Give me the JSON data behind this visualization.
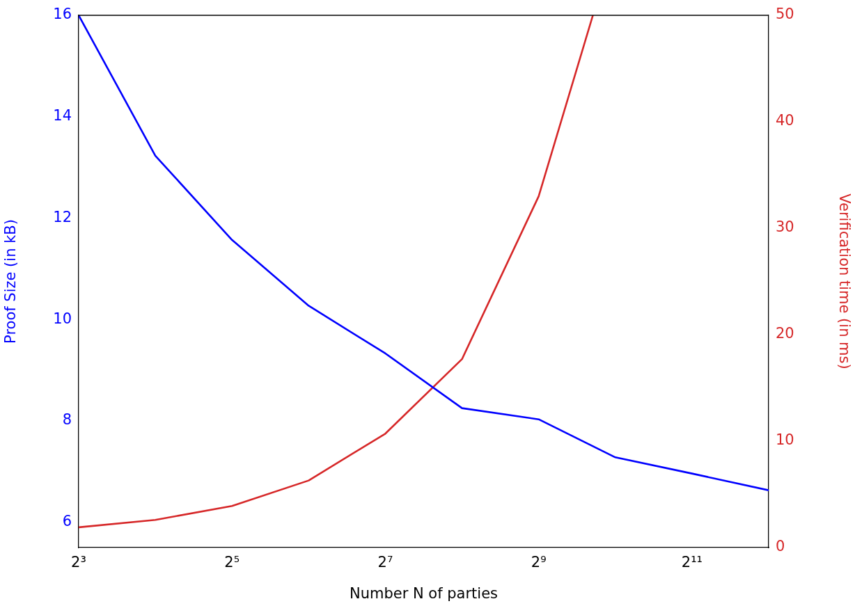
{
  "chart_data": {
    "type": "line",
    "xlabel": "Number N of parties",
    "ylabel": "Proof Size (in kB)",
    "y2label": "Verification time (in ms)",
    "log": "x",
    "xlim": [
      8,
      4096
    ],
    "xticks": [
      {
        "value": 8,
        "label": "2³"
      },
      {
        "value": 32,
        "label": "2⁵"
      },
      {
        "value": 128,
        "label": "2⁷"
      },
      {
        "value": 512,
        "label": "2⁹"
      },
      {
        "value": 2048,
        "label": "2¹¹"
      }
    ],
    "ylim": [
      5.5,
      16
    ],
    "yticks": [
      6,
      8,
      10,
      12,
      14,
      16
    ],
    "y2lim": [
      0,
      50
    ],
    "y2ticks": [
      0,
      10,
      20,
      30,
      40,
      50
    ],
    "grid": false,
    "legend": false,
    "marker": "none",
    "line_style": "solid",
    "series": [
      {
        "color": "#0000ff",
        "x": [
          8,
          16,
          32,
          64,
          128,
          256,
          512,
          1024,
          2048,
          4096
        ],
        "values": [
          16,
          13.23,
          11.57,
          10.27,
          9.33,
          8.25,
          8.03,
          7.28,
          6.96,
          6.63
        ]
      },
      {
        "color": "#d62728",
        "axis": "y2",
        "x": [
          8,
          16,
          32,
          64,
          128,
          256,
          512,
          836
        ],
        "values": [
          1.9,
          2.6,
          3.9,
          6.3,
          10.7,
          17.7,
          33,
          50
        ]
      }
    ]
  }
}
